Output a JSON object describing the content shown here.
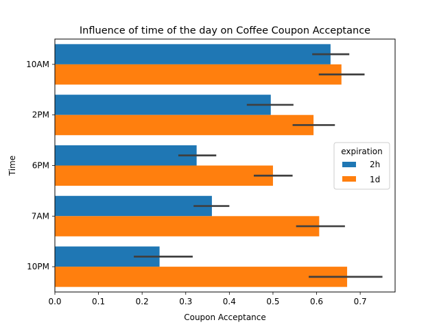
{
  "chart_data": {
    "type": "bar",
    "orientation": "horizontal",
    "title": "Influence of time of the day on Coffee Coupon Acceptance",
    "xlabel": "Coupon Acceptance",
    "ylabel": "Time",
    "xlim": [
      0,
      0.78
    ],
    "xticks": [
      "0.0",
      "0.1",
      "0.2",
      "0.3",
      "0.4",
      "0.5",
      "0.6",
      "0.7"
    ],
    "categories": [
      "10AM",
      "2PM",
      "6PM",
      "7AM",
      "10PM"
    ],
    "series": [
      {
        "name": "2h",
        "color": "#1f77b4",
        "values": [
          0.632,
          0.495,
          0.325,
          0.36,
          0.24
        ],
        "ci": [
          [
            0.59,
            0.675
          ],
          [
            0.44,
            0.547
          ],
          [
            0.283,
            0.37
          ],
          [
            0.318,
            0.4
          ],
          [
            0.181,
            0.316
          ]
        ]
      },
      {
        "name": "1d",
        "color": "#ff7f0e",
        "values": [
          0.657,
          0.593,
          0.5,
          0.606,
          0.67
        ],
        "ci": [
          [
            0.605,
            0.71
          ],
          [
            0.545,
            0.642
          ],
          [
            0.456,
            0.545
          ],
          [
            0.553,
            0.665
          ],
          [
            0.582,
            0.751
          ]
        ]
      }
    ],
    "errorbar_color": "#3f3f3f",
    "legend": {
      "title": "expiration",
      "position": "center-right"
    },
    "grid": false
  }
}
